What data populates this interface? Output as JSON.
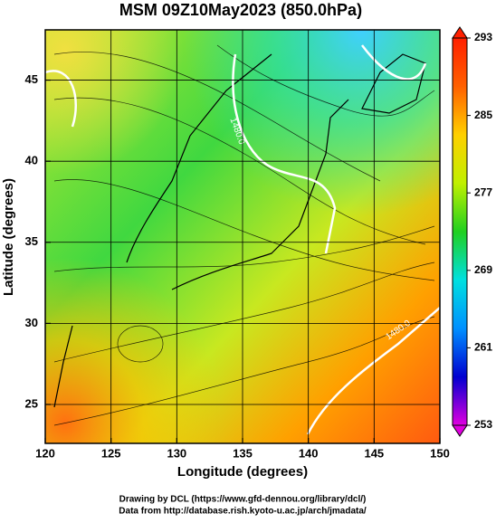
{
  "chart_data": {
    "type": "contour",
    "title": "MSM 09Z10May2023 (850.0hPa)",
    "x_label": "Longitude (degrees)",
    "y_label": "Latitude  (degrees)",
    "xlim": [
      120,
      150
    ],
    "xticks": [
      120,
      125,
      130,
      135,
      140,
      145,
      150
    ],
    "ylim": [
      22.6,
      48.1
    ],
    "yticks": [
      25,
      30,
      35,
      40,
      45
    ],
    "grid": true,
    "annotations": [
      "1480.0",
      "1480.0"
    ],
    "colorbar": {
      "lim": [
        253,
        293
      ],
      "ticks": [
        253,
        261,
        269,
        277,
        285,
        293
      ],
      "colors": [
        "#e000e0",
        "#0000d0",
        "#0090ff",
        "#00e0e0",
        "#20d020",
        "#c0f000",
        "#ffd000",
        "#ff6000",
        "#ff2000"
      ]
    },
    "footer": [
      "Drawing by DCL (https://www.gfd-dennou.org/library/dcl/)",
      "Data from http://database.rish.kyoto-u.ac.jp/arch/jmadata/"
    ]
  }
}
